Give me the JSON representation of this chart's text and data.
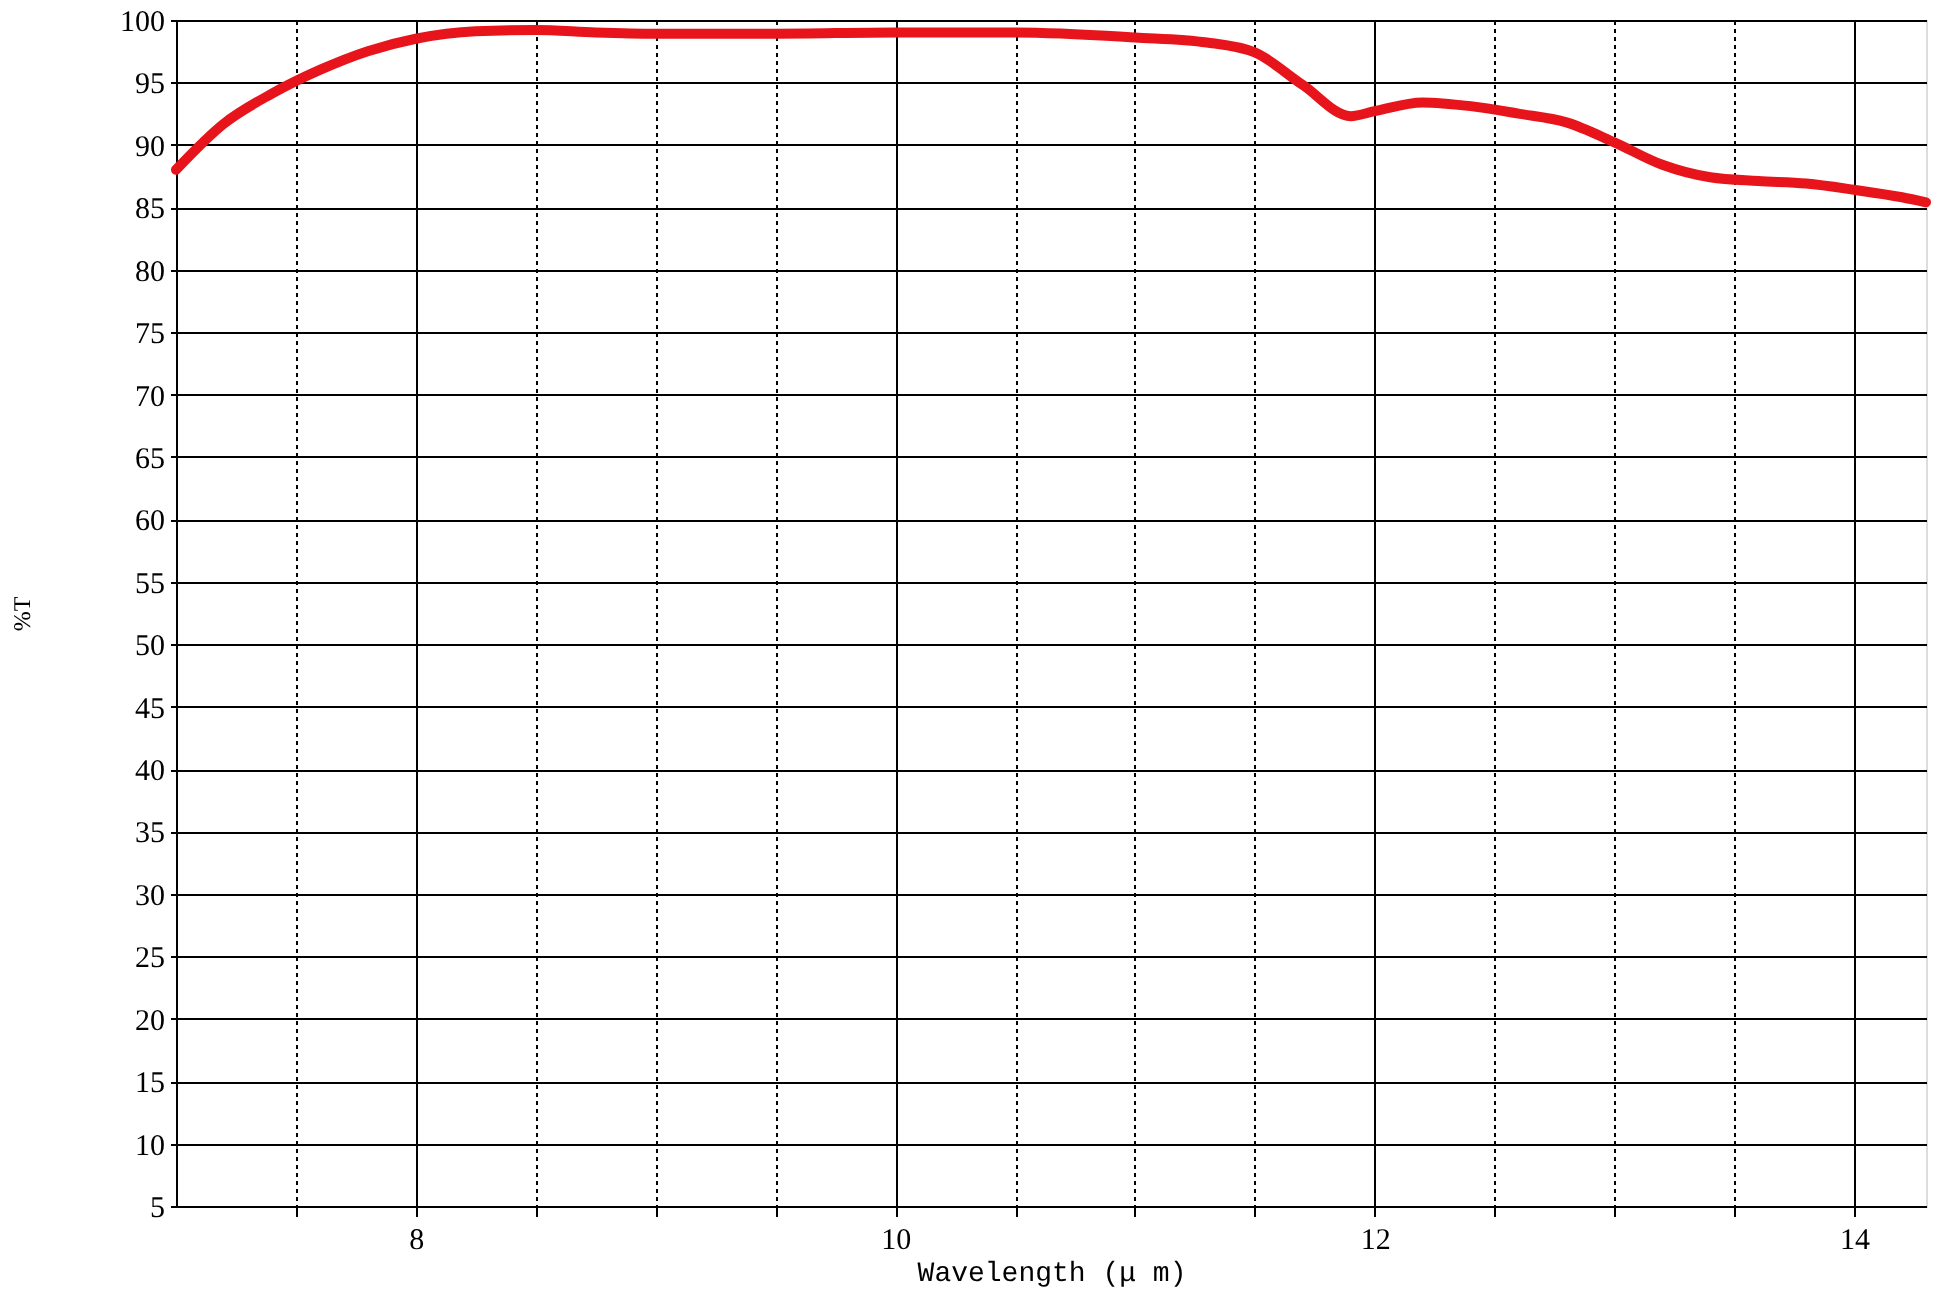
{
  "chart_data": {
    "type": "line",
    "xlabel": "Wavelength (μ m)",
    "ylabel": "%T",
    "x": [
      7.0,
      7.2,
      7.4,
      7.6,
      7.8,
      8.0,
      8.25,
      8.5,
      8.75,
      9.0,
      9.5,
      10.0,
      10.5,
      11.0,
      11.3,
      11.5,
      11.7,
      11.9,
      12.0,
      12.2,
      12.4,
      12.6,
      12.8,
      13.0,
      13.2,
      13.4,
      13.6,
      13.8,
      14.0,
      14.2,
      14.3
    ],
    "series": [
      {
        "color": "#e8141b",
        "values": [
          88.0,
          91.7,
          94.1,
          96.0,
          97.5,
          98.5,
          99.1,
          99.2,
          99.0,
          98.9,
          98.9,
          99.0,
          99.0,
          98.6,
          98.2,
          97.4,
          94.8,
          92.3,
          92.7,
          93.4,
          93.1,
          92.5,
          91.8,
          90.2,
          88.4,
          87.4,
          87.1,
          86.9,
          86.4,
          85.8,
          85.4
        ]
      }
    ],
    "xlim": [
      7.0,
      14.3
    ],
    "xticks": [
      {
        "value": 7.5,
        "label": null
      },
      8,
      {
        "value": 8.5,
        "label": null
      },
      {
        "value": 9,
        "label": null
      },
      {
        "value": 9.5,
        "label": null
      },
      10,
      {
        "value": 10.5,
        "label": null
      },
      {
        "value": 11,
        "label": null
      },
      {
        "value": 11.5,
        "label": null
      },
      12,
      {
        "value": 12.5,
        "label": null
      },
      {
        "value": 13,
        "label": null
      },
      {
        "value": 13.5,
        "label": null
      },
      14
    ],
    "ylim": [
      5,
      100
    ],
    "yticks": [
      5,
      10,
      15,
      20,
      25,
      30,
      35,
      40,
      45,
      50,
      55,
      60,
      65,
      70,
      75,
      80,
      85,
      90,
      95,
      100
    ],
    "grid": true,
    "marker": "none",
    "line_style": "solid"
  }
}
